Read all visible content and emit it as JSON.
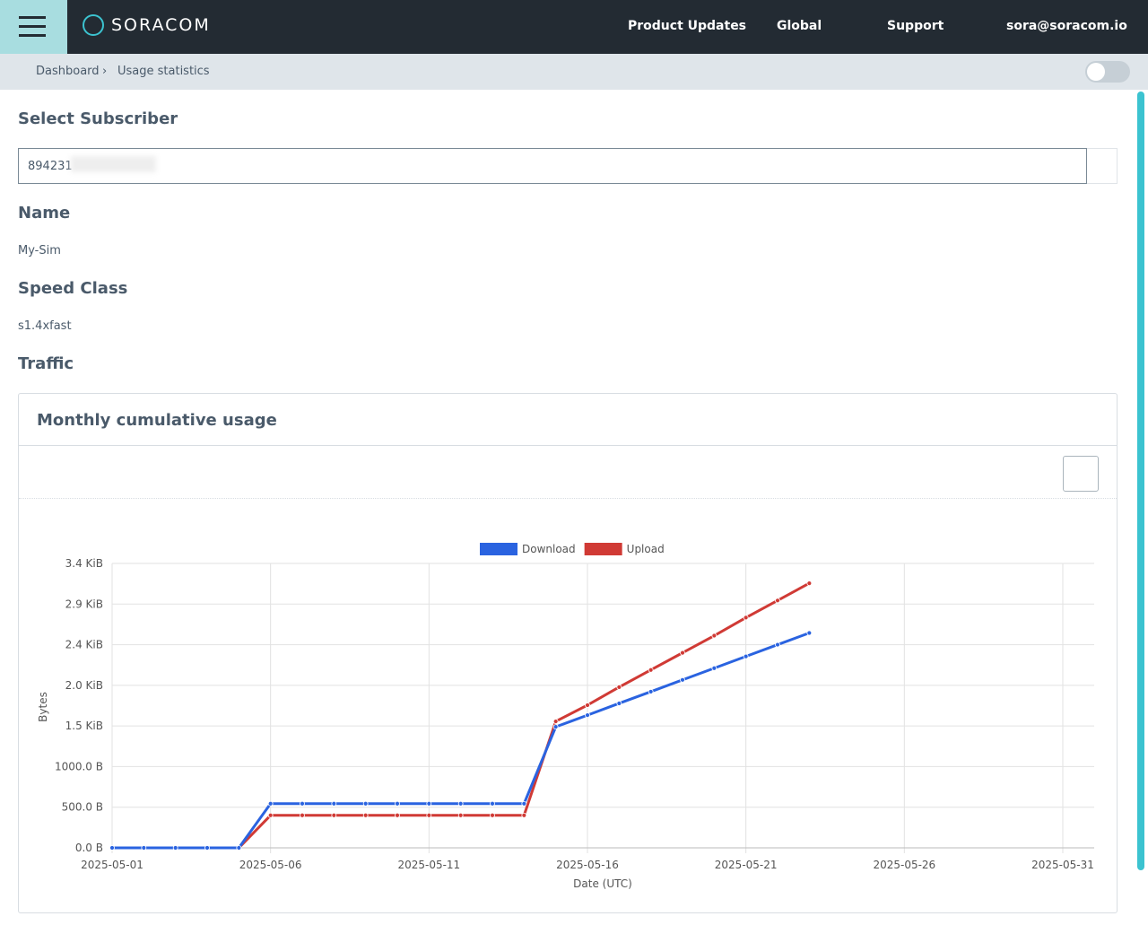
{
  "header": {
    "brand": "SORACOM",
    "links": [
      "Product Updates",
      "Global",
      "Support",
      "sora@soracom.io"
    ]
  },
  "breadcrumb": [
    "Dashboard",
    "Usage statistics"
  ],
  "subscriber": {
    "label": "Select Subscriber",
    "value": "894231"
  },
  "name": {
    "label": "Name",
    "value": "My-Sim"
  },
  "speed_class": {
    "label": "Speed Class",
    "value": "s1.4xfast"
  },
  "traffic": {
    "label": "Traffic",
    "card_title": "Monthly cumulative usage"
  },
  "chart_data": {
    "type": "line",
    "y_label": "Bytes",
    "x_label": "Date (UTC)",
    "x": [
      "2025-05-01",
      "2025-05-02",
      "2025-05-03",
      "2025-05-04",
      "2025-05-05",
      "2025-05-06",
      "2025-05-07",
      "2025-05-08",
      "2025-05-09",
      "2025-05-10",
      "2025-05-11",
      "2025-05-12",
      "2025-05-13",
      "2025-05-14",
      "2025-05-15",
      "2025-05-16",
      "2025-05-17",
      "2025-05-18",
      "2025-05-19",
      "2025-05-20",
      "2025-05-21",
      "2025-05-22",
      "2025-05-23"
    ],
    "series": [
      {
        "name": "Download",
        "color": "#2a63e0",
        "values": [
          0,
          0,
          0,
          0,
          0,
          544,
          544,
          544,
          544,
          544,
          544,
          544,
          544,
          544,
          1489,
          1633,
          1778,
          1922,
          2067,
          2211,
          2356,
          2500,
          2644
        ]
      },
      {
        "name": "Upload",
        "color": "#d03a35",
        "values": [
          0,
          0,
          0,
          0,
          0,
          400,
          400,
          400,
          400,
          400,
          400,
          400,
          400,
          400,
          1556,
          1756,
          1978,
          2189,
          2400,
          2611,
          2833,
          3044,
          3256
        ]
      }
    ],
    "xlim": [
      "2025-05-01",
      "2025-05-31"
    ],
    "xticks": [
      "2025-05-01",
      "2025-05-06",
      "2025-05-11",
      "2025-05-16",
      "2025-05-21",
      "2025-05-26",
      "2025-05-31"
    ],
    "ylim": [
      0,
      3500
    ],
    "yticks": [
      {
        "value": 0,
        "label": "0.0 B"
      },
      {
        "value": 500,
        "label": "500.0 B"
      },
      {
        "value": 1000,
        "label": "1000.0 B"
      },
      {
        "value": 1500,
        "label": "1.5 KiB"
      },
      {
        "value": 2000,
        "label": "2.0 KiB"
      },
      {
        "value": 2500,
        "label": "2.4 KiB"
      },
      {
        "value": 3000,
        "label": "2.9 KiB"
      },
      {
        "value": 3500,
        "label": "3.4 KiB"
      }
    ],
    "grid": true
  }
}
